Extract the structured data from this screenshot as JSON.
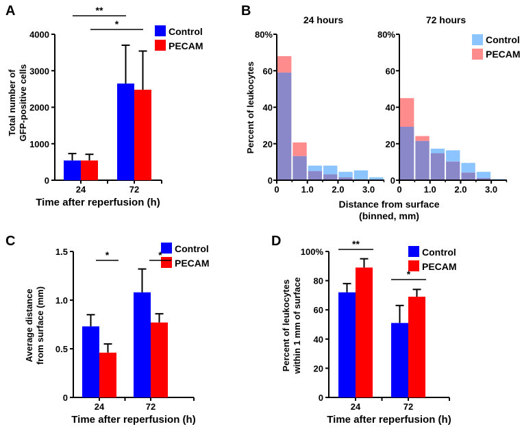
{
  "chart_data": [
    {
      "panel": "A",
      "type": "bar",
      "categories": [
        "24",
        "72"
      ],
      "xlabel": "Time after reperfusion (h)",
      "ylabel": [
        "Total number of",
        "GFP-positive cells"
      ],
      "ylim": [
        0,
        4000
      ],
      "yticks": [
        0,
        1000,
        2000,
        3000,
        4000
      ],
      "series": [
        {
          "name": "Control",
          "color": "#0000ff",
          "values": [
            540,
            2650
          ],
          "err_upper": [
            730,
            3700
          ]
        },
        {
          "name": "PECAM",
          "color": "#ff0000",
          "values": [
            540,
            2480
          ],
          "err_upper": [
            710,
            3540
          ]
        }
      ],
      "significance": [
        {
          "label": "**",
          "from": "24 PECAM",
          "to": "72 Control"
        },
        {
          "label": "*",
          "from": "24 PECAM",
          "to": "72 PECAM"
        }
      ]
    },
    {
      "panel": "B",
      "type": "bar",
      "subtype": "overlapping-histogram",
      "xlabel": [
        "Distance from surface",
        "(binned, mm)"
      ],
      "ylabel": "Percent of leukocytes",
      "ylim": [
        0,
        80
      ],
      "yticks": [
        "0",
        "20",
        "40",
        "60",
        "80%"
      ],
      "xticks": [
        "0",
        "1.0",
        "2.0",
        "3.0"
      ],
      "bin_edges": [
        0,
        0.5,
        1.0,
        1.5,
        2.0,
        2.5,
        3.0,
        3.5
      ],
      "overlap_color": "#8a88c8",
      "subplots": [
        {
          "title": "24 hours",
          "series": [
            {
              "name": "Control",
              "color": "#8cc4ff",
              "values": [
                59,
                13.2,
                8,
                8,
                4.6,
                5.4,
                1.6
              ]
            },
            {
              "name": "PECAM",
              "color": "#ff8c8c",
              "values": [
                68,
                20.7,
                5,
                3.2,
                1.6,
                0.5,
                0.3
              ]
            }
          ]
        },
        {
          "title": "72 hours",
          "series": [
            {
              "name": "Control",
              "color": "#8cc4ff",
              "values": [
                29.3,
                21.5,
                17.3,
                16.4,
                9.5,
                4.6,
                0.6
              ]
            },
            {
              "name": "PECAM",
              "color": "#ff8c8c",
              "values": [
                45,
                24.2,
                14.8,
                10.2,
                4.2,
                1.2,
                0.3
              ]
            }
          ]
        }
      ]
    },
    {
      "panel": "C",
      "type": "bar",
      "categories": [
        "24",
        "72"
      ],
      "xlabel": "Time after reperfusion (h)",
      "ylabel": [
        "Average distance",
        "from surface (mm)"
      ],
      "ylim": [
        0,
        1.5
      ],
      "yticks": [
        "0",
        "0.5",
        "1.0",
        "1.5"
      ],
      "series": [
        {
          "name": "Control",
          "color": "#0000ff",
          "values": [
            0.73,
            1.08
          ],
          "err_upper": [
            0.85,
            1.32
          ]
        },
        {
          "name": "PECAM",
          "color": "#ff0000",
          "values": [
            0.46,
            0.77
          ],
          "err_upper": [
            0.55,
            0.86
          ]
        }
      ],
      "significance": [
        {
          "label": "*",
          "group": "24"
        },
        {
          "label": "*",
          "group": "72"
        }
      ]
    },
    {
      "panel": "D",
      "type": "bar",
      "categories": [
        "24",
        "72"
      ],
      "xlabel": "Time after reperfusion (h)",
      "ylabel": [
        "Percent of leukocytes",
        "within 1 mm of surface"
      ],
      "ylim": [
        0,
        100
      ],
      "yticks": [
        "0",
        "20",
        "40",
        "60",
        "80",
        "100%"
      ],
      "series": [
        {
          "name": "Control",
          "color": "#0000ff",
          "values": [
            72,
            51
          ],
          "err_upper": [
            78,
            63
          ]
        },
        {
          "name": "PECAM",
          "color": "#ff0000",
          "values": [
            89,
            69
          ],
          "err_upper": [
            95,
            74
          ]
        }
      ],
      "significance": [
        {
          "label": "**",
          "group": "24"
        },
        {
          "label": "*",
          "group": "72"
        }
      ]
    }
  ]
}
